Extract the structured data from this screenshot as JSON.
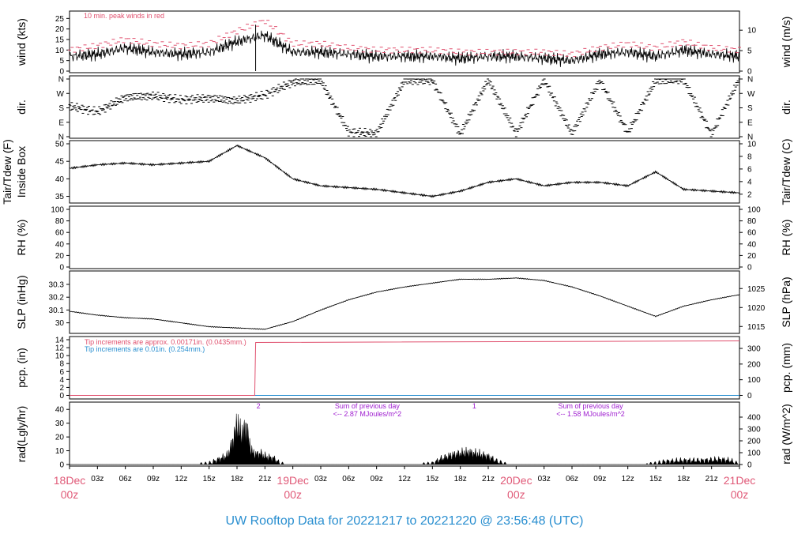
{
  "title": "UW Rooftop Data for 20221217  to  20221220 @ 23:56:48  (UTC)",
  "colors": {
    "line": "#000000",
    "peak": "#e0506e",
    "pcp_red": "#e0506e",
    "pcp_blue": "#2a8fd0",
    "note_purple": "#a020d0",
    "day_label": "#e05a78",
    "title": "#2a8fd0"
  },
  "x_axis": {
    "hour_labels": [
      "03z",
      "06z",
      "09z",
      "12z",
      "15z",
      "18z",
      "21z",
      "03z",
      "06z",
      "09z",
      "12z",
      "15z",
      "18z",
      "21z",
      "03z",
      "06z",
      "09z",
      "12z",
      "15z",
      "18z",
      "21z"
    ],
    "day_labels": [
      {
        "top": "18Dec",
        "bottom": "00z"
      },
      {
        "top": "19Dec",
        "bottom": "00z"
      },
      {
        "top": "20Dec",
        "bottom": "00z"
      },
      {
        "top": "21Dec",
        "bottom": "00z"
      }
    ]
  },
  "chart_data": [
    {
      "type": "line",
      "id": "wind",
      "ylabel_left": "wind (kts)",
      "ylabel_right": "wind (m/s)",
      "ylim": [
        0,
        27
      ],
      "yticks": [
        0,
        5,
        10,
        15,
        20,
        25
      ],
      "right_ylim": [
        0,
        13.9
      ],
      "right_yticks": [
        0,
        5,
        10
      ],
      "annotation": "10 min. peak winds in red",
      "x_hours": [
        0,
        3,
        6,
        9,
        12,
        15,
        18,
        21,
        24,
        27,
        30,
        33,
        36,
        39,
        42,
        45,
        48,
        51,
        54,
        57,
        60,
        63,
        66,
        69,
        72
      ],
      "series": [
        {
          "values": [
            7,
            8,
            11,
            9,
            8,
            9,
            14,
            17,
            9,
            9,
            8,
            7,
            7,
            7,
            6,
            7,
            7,
            6,
            5,
            8,
            9,
            7,
            10,
            8,
            7
          ]
        },
        {
          "values": [
            10,
            12,
            15,
            13,
            12,
            13,
            19,
            24,
            13,
            13,
            11,
            10,
            10,
            10,
            9,
            9,
            9,
            9,
            8,
            11,
            13,
            11,
            14,
            11,
            10
          ]
        }
      ]
    },
    {
      "type": "scatter",
      "id": "dir",
      "ylabel_left": "dir.",
      "ylabel_right": "dir.",
      "ylim": [
        0,
        360
      ],
      "ytick_labels": [
        "N",
        "E",
        "S",
        "W",
        "N"
      ],
      "x_hours": [
        0,
        3,
        6,
        9,
        12,
        15,
        18,
        21,
        24,
        27,
        30,
        33,
        36,
        39,
        42,
        45,
        48,
        51,
        54,
        57,
        60,
        63,
        66,
        69,
        72
      ],
      "values": [
        190,
        155,
        245,
        255,
        230,
        240,
        225,
        260,
        340,
        350,
        30,
        20,
        350,
        350,
        15,
        355,
        20,
        355,
        20,
        350,
        25,
        350,
        355,
        15,
        360
      ]
    },
    {
      "type": "line",
      "id": "temp",
      "ylabel_left": "Tair/Tdew (F)",
      "ylabel_left2": "Inside Box",
      "ylabel_right": "Tair/Tdew (C)",
      "ylim": [
        34,
        50
      ],
      "yticks": [
        35,
        40,
        45,
        50
      ],
      "right_ylim": [
        1.1,
        10
      ],
      "right_yticks": [
        2,
        4,
        6,
        8,
        10
      ],
      "x_hours": [
        0,
        3,
        6,
        9,
        12,
        15,
        18,
        21,
        24,
        27,
        30,
        33,
        36,
        39,
        42,
        45,
        48,
        51,
        54,
        57,
        60,
        63,
        66,
        69,
        72
      ],
      "values": [
        43,
        44,
        44.5,
        44,
        44.5,
        45,
        49.5,
        46,
        40,
        38,
        37.5,
        37,
        36,
        35,
        36.5,
        39,
        40,
        38,
        39,
        39,
        38,
        42,
        37,
        36.5,
        36
      ]
    },
    {
      "type": "line",
      "id": "rh",
      "ylabel_left": "RH (%)",
      "ylabel_right": "RH (%)",
      "ylim": [
        0,
        100
      ],
      "yticks": [
        0,
        20,
        40,
        60,
        80,
        100
      ],
      "right_ylim": [
        0,
        100
      ],
      "right_yticks": [
        0,
        20,
        40,
        60,
        80,
        100
      ],
      "values": []
    },
    {
      "type": "line",
      "id": "slp",
      "ylabel_left": "SLP (inHg)",
      "ylabel_right": "SLP (hPa)",
      "ylim": [
        29.93,
        30.38
      ],
      "yticks": [
        30.0,
        30.1,
        30.2,
        30.3
      ],
      "right_ylim": [
        1013.6,
        1028.8
      ],
      "right_yticks": [
        1015,
        1020,
        1025
      ],
      "x_hours": [
        0,
        3,
        6,
        9,
        12,
        15,
        18,
        21,
        24,
        27,
        30,
        33,
        36,
        39,
        42,
        45,
        48,
        51,
        54,
        57,
        60,
        63,
        66,
        69,
        72
      ],
      "values": [
        30.09,
        30.06,
        30.04,
        30.03,
        30.0,
        29.97,
        29.96,
        29.95,
        30.01,
        30.1,
        30.18,
        30.24,
        30.28,
        30.31,
        30.34,
        30.34,
        30.35,
        30.33,
        30.28,
        30.21,
        30.13,
        30.05,
        30.13,
        30.18,
        30.22
      ]
    },
    {
      "type": "line",
      "id": "pcp",
      "ylabel_left": "pcp. (in)",
      "ylabel_right": "pcp. (mm)",
      "ylim": [
        -0.5,
        14
      ],
      "yticks": [
        0,
        2,
        4,
        6,
        8,
        10,
        12,
        14
      ],
      "right_ylim": [
        -12.7,
        355.6
      ],
      "right_yticks": [
        0,
        100,
        200,
        300
      ],
      "annotations": [
        "Tip increments are approx. 0.00171in. (0.0435mm.)",
        "Tip increments are 0.01in. (0.254mm.)"
      ],
      "x_hours": [
        0,
        19.9,
        20.0,
        72
      ],
      "series": [
        {
          "values": [
            0,
            0,
            13.3,
            13.7
          ]
        },
        {
          "values": [
            0,
            0,
            0,
            0
          ]
        }
      ]
    },
    {
      "type": "area",
      "id": "rad",
      "ylabel_left": "rad(Lgly/hr)",
      "ylabel_right": "rad (W/m^2)",
      "ylim": [
        0,
        43
      ],
      "yticks": [
        0,
        10,
        20,
        30,
        40
      ],
      "right_ylim": [
        0,
        500
      ],
      "right_yticks": [
        0,
        100,
        200,
        300,
        400
      ],
      "annotations": [
        {
          "label": "2",
          "hour": 20.3
        },
        {
          "label": "Sum of previous day",
          "line2": "<-- 2.87 MJoules/m^2",
          "hour": 32
        },
        {
          "label": "1",
          "hour": 43.5
        },
        {
          "label": "Sum of previous day",
          "line2": "<-- 1.58 MJoules/m^2",
          "hour": 56
        }
      ],
      "x_hours": [
        0,
        14,
        15,
        16,
        17,
        17.5,
        18,
        18.5,
        19,
        19.5,
        20,
        20.5,
        21,
        22,
        22.5,
        23,
        38,
        39,
        40,
        41,
        42,
        43,
        44,
        45,
        46,
        47,
        62,
        63,
        64,
        66,
        68,
        70,
        71,
        72
      ],
      "values": [
        0,
        0,
        1,
        5,
        9,
        22,
        40,
        30,
        38,
        14,
        10,
        11,
        8,
        6,
        2,
        0,
        0,
        1,
        6,
        9,
        11,
        12,
        10,
        8,
        3,
        0,
        0,
        1,
        3,
        4,
        4,
        5,
        4,
        0
      ]
    }
  ]
}
